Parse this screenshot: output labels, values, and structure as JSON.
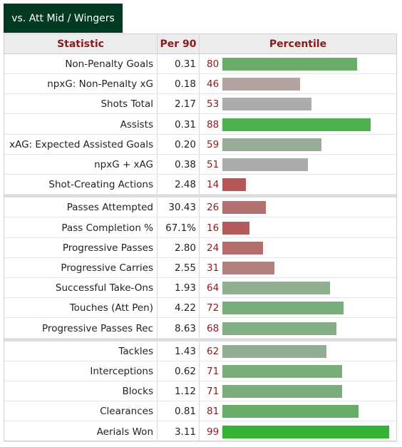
{
  "tab_label": "vs. Att Mid / Wingers",
  "headers": {
    "statistic": "Statistic",
    "per90": "Per 90",
    "percentile": "Percentile"
  },
  "groups": [
    {
      "rows": [
        {
          "stat": "Non-Penalty Goals",
          "per90": "0.31",
          "pct": 80,
          "color": "#6aac6a"
        },
        {
          "stat": "npxG: Non-Penalty xG",
          "per90": "0.18",
          "pct": 46,
          "color": "#b3a3a1"
        },
        {
          "stat": "Shots Total",
          "per90": "2.17",
          "pct": 53,
          "color": "#abadab"
        },
        {
          "stat": "Assists",
          "per90": "0.31",
          "pct": 88,
          "color": "#4cb04c"
        },
        {
          "stat": "xAG: Expected Assisted Goals",
          "per90": "0.20",
          "pct": 59,
          "color": "#98ac98"
        },
        {
          "stat": "npxG + xAG",
          "per90": "0.38",
          "pct": 51,
          "color": "#acacac"
        },
        {
          "stat": "Shot-Creating Actions",
          "per90": "2.48",
          "pct": 14,
          "color": "#b35858"
        }
      ]
    },
    {
      "rows": [
        {
          "stat": "Passes Attempted",
          "per90": "30.43",
          "pct": 26,
          "color": "#b37070"
        },
        {
          "stat": "Pass Completion %",
          "per90": "67.1%",
          "pct": 16,
          "color": "#b35a5a"
        },
        {
          "stat": "Progressive Passes",
          "per90": "2.80",
          "pct": 24,
          "color": "#b36c6c"
        },
        {
          "stat": "Progressive Carries",
          "per90": "2.55",
          "pct": 31,
          "color": "#b38080"
        },
        {
          "stat": "Successful Take-Ons",
          "per90": "1.93",
          "pct": 64,
          "color": "#8fb08f"
        },
        {
          "stat": "Touches (Att Pen)",
          "per90": "4.22",
          "pct": 72,
          "color": "#7aae7a"
        },
        {
          "stat": "Progressive Passes Rec",
          "per90": "8.63",
          "pct": 68,
          "color": "#84ae84"
        }
      ]
    },
    {
      "rows": [
        {
          "stat": "Tackles",
          "per90": "1.43",
          "pct": 62,
          "color": "#92ae92"
        },
        {
          "stat": "Interceptions",
          "per90": "0.62",
          "pct": 71,
          "color": "#7cae7c"
        },
        {
          "stat": "Blocks",
          "per90": "1.12",
          "pct": 71,
          "color": "#7cae7c"
        },
        {
          "stat": "Clearances",
          "per90": "0.81",
          "pct": 81,
          "color": "#68ac68"
        },
        {
          "stat": "Aerials Won",
          "per90": "3.11",
          "pct": 99,
          "color": "#35b335"
        }
      ]
    }
  ]
}
